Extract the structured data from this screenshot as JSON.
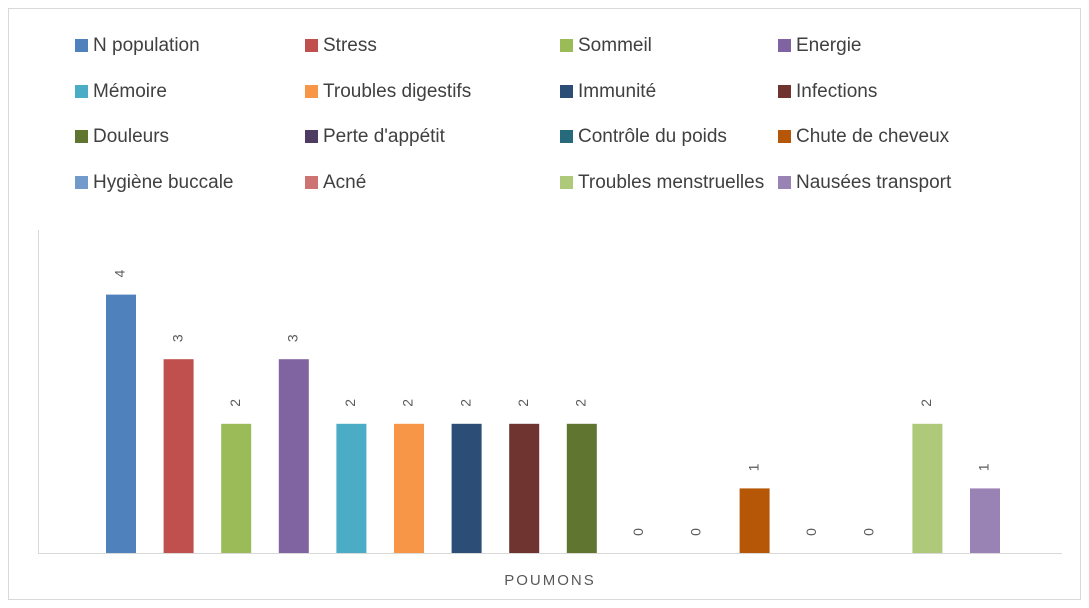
{
  "chart_data": {
    "type": "bar",
    "categories": [
      "POUMONS"
    ],
    "series": [
      {
        "name": "N population",
        "color": "#4f81bd",
        "values": [
          4
        ]
      },
      {
        "name": "Stress",
        "color": "#c0504d",
        "values": [
          3
        ]
      },
      {
        "name": "Sommeil",
        "color": "#9bbb59",
        "values": [
          2
        ]
      },
      {
        "name": "Energie",
        "color": "#8064a2",
        "values": [
          3
        ]
      },
      {
        "name": "Mémoire",
        "color": "#4bacc6",
        "values": [
          2
        ]
      },
      {
        "name": "Troubles digestifs",
        "color": "#f79646",
        "values": [
          2
        ]
      },
      {
        "name": "Immunité",
        "color": "#2c4d75",
        "values": [
          2
        ]
      },
      {
        "name": "Infections",
        "color": "#6f3330",
        "values": [
          2
        ]
      },
      {
        "name": "Douleurs",
        "color": "#5f7530",
        "values": [
          2
        ]
      },
      {
        "name": "Perte d'appétit",
        "color": "#4d3b62",
        "values": [
          0
        ]
      },
      {
        "name": "Contrôle du poids",
        "color": "#276a7c",
        "values": [
          0
        ]
      },
      {
        "name": "Chute de cheveux",
        "color": "#b65708",
        "values": [
          1
        ]
      },
      {
        "name": "Hygiène buccale",
        "color": "#729aca",
        "values": [
          0
        ]
      },
      {
        "name": "Acné",
        "color": "#cd7371",
        "values": [
          0
        ]
      },
      {
        "name": "Troubles menstruelles",
        "color": "#afc97a",
        "values": [
          2
        ]
      },
      {
        "name": "Nausées transport",
        "color": "#9983b5",
        "values": [
          1
        ]
      }
    ],
    "ylim": [
      0,
      5
    ],
    "legend": "top",
    "grid": false
  }
}
